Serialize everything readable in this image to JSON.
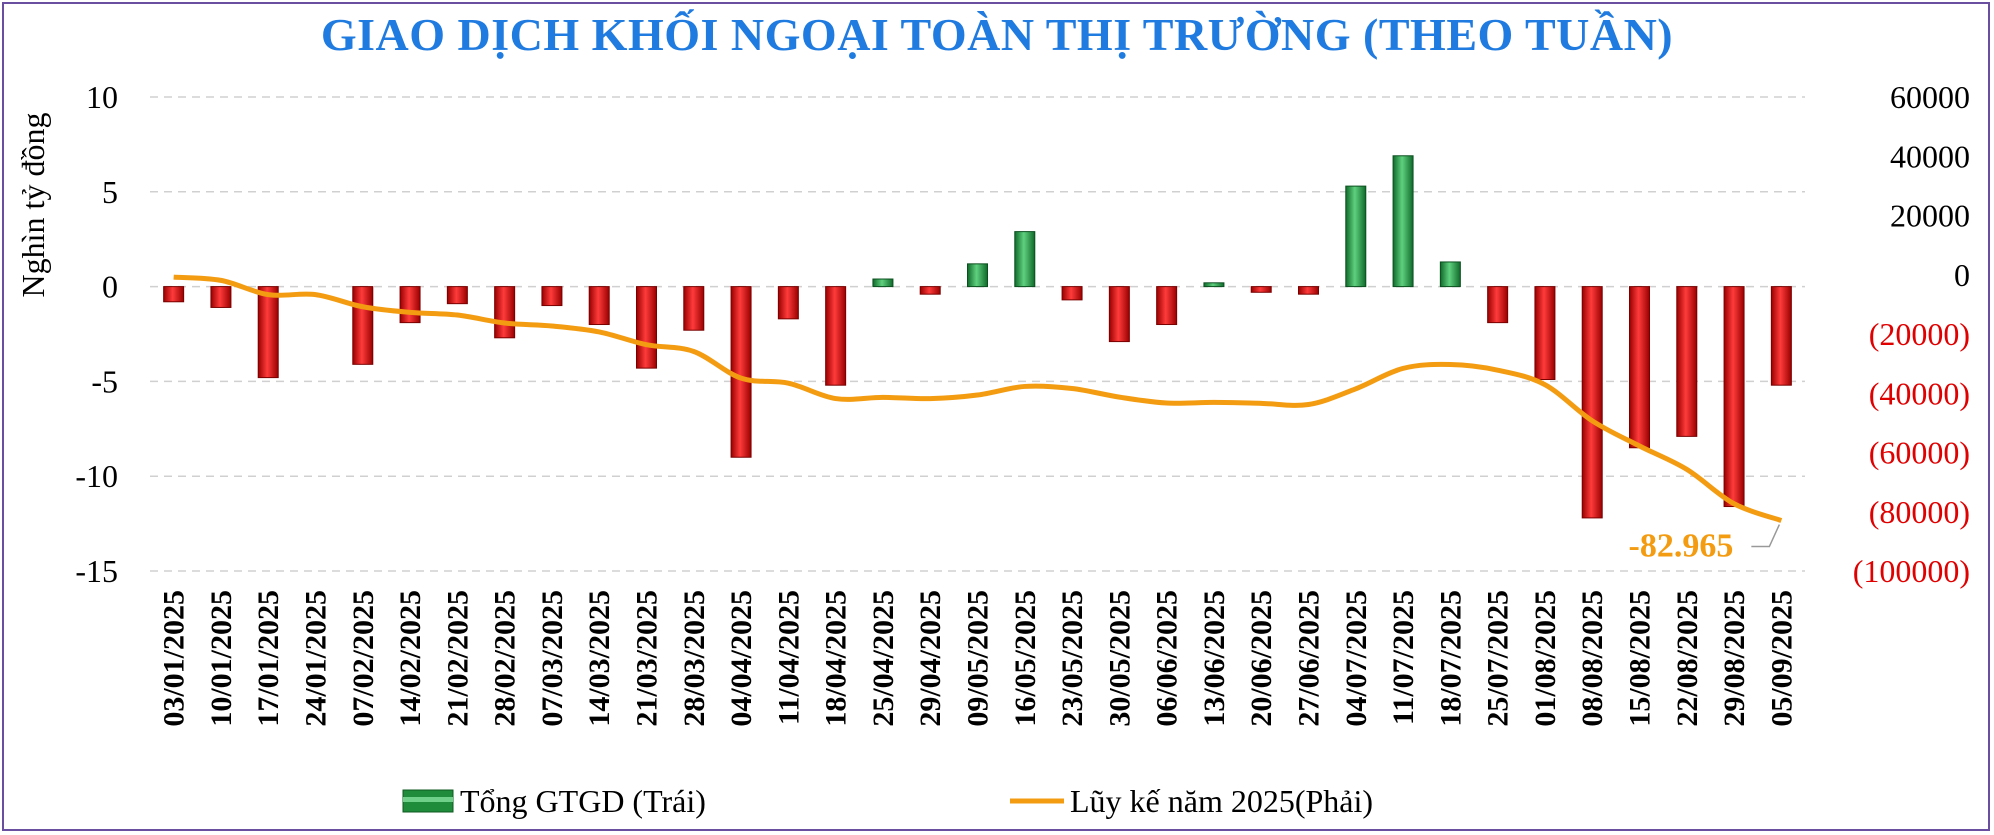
{
  "chart_data": {
    "type": "bar+line",
    "title": "GIAO DỊCH KHỐI NGOẠI TOÀN THỊ TRƯỜNG (THEO TUẦN)",
    "ylabel": "Nghìn tỷ đồng",
    "ylim_left": [
      -15,
      10
    ],
    "ylim_right": [
      -100000,
      60000
    ],
    "left_ticks": [
      "10",
      "5",
      "0",
      "-5",
      "-10",
      "-15"
    ],
    "right_ticks": [
      "60000",
      "40000",
      "20000",
      "0",
      "(20000)",
      "(40000)",
      "(60000)",
      "(80000)",
      "(100000)"
    ],
    "grid": true,
    "legend_position": "bottom",
    "categories": [
      "03/01/2025",
      "10/01/2025",
      "17/01/2025",
      "24/01/2025",
      "07/02/2025",
      "14/02/2025",
      "21/02/2025",
      "28/02/2025",
      "07/03/2025",
      "14/03/2025",
      "21/03/2025",
      "28/03/2025",
      "04/04/2025",
      "11/04/2025",
      "18/04/2025",
      "25/04/2025",
      "29/04/2025",
      "09/05/2025",
      "16/05/2025",
      "23/05/2025",
      "30/05/2025",
      "06/06/2025",
      "13/06/2025",
      "20/06/2025",
      "27/06/2025",
      "04/07/2025",
      "11/07/2025",
      "18/07/2025",
      "25/07/2025",
      "01/08/2025",
      "08/08/2025",
      "15/08/2025",
      "22/08/2025",
      "29/08/2025",
      "05/09/2025"
    ],
    "series": [
      {
        "name": "Tổng GTGD (Trái)",
        "type": "bar",
        "axis": "left",
        "values": [
          -0.8,
          -1.1,
          -4.8,
          0,
          -4.1,
          -1.9,
          -0.9,
          -2.7,
          -1.0,
          -2.0,
          -4.3,
          -2.3,
          -9.0,
          -1.7,
          -5.2,
          0.4,
          -0.4,
          1.2,
          2.9,
          -0.7,
          -2.9,
          -2.0,
          0.2,
          -0.3,
          -0.4,
          5.3,
          6.9,
          1.3,
          -1.9,
          -4.9,
          -12.2,
          -8.5,
          -7.9,
          -11.6,
          -5.2
        ]
      },
      {
        "name": "Lũy kế năm 2025(Phải)",
        "type": "line",
        "axis": "right",
        "values": [
          -800,
          -1900,
          -6700,
          -6700,
          -10800,
          -12700,
          -13600,
          -16300,
          -17300,
          -19300,
          -23600,
          -25900,
          -34900,
          -36600,
          -41800,
          -41400,
          -41800,
          -40600,
          -37700,
          -38400,
          -41300,
          -43300,
          -43100,
          -43400,
          -43800,
          -38500,
          -31600,
          -30300,
          -32200,
          -37100,
          -49300,
          -57800,
          -65700,
          -77300,
          -82965
        ]
      }
    ],
    "colors": {
      "positive_bar": "#1e8c3a",
      "negative_bar": "#e00000",
      "line": "#f39c12",
      "negative_right_tick": "#e00000",
      "title": "#1f7be0"
    },
    "annotation": "-82.965"
  }
}
